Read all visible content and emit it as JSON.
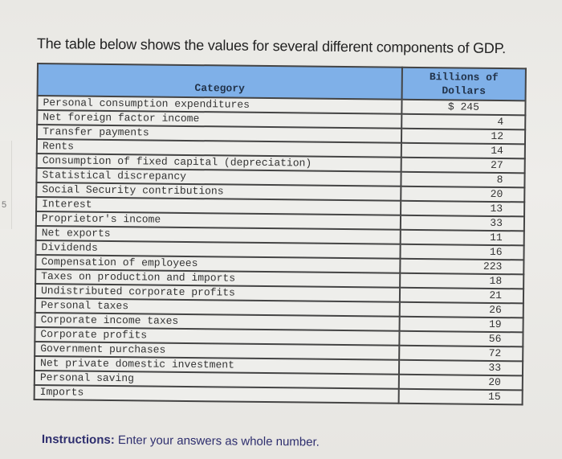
{
  "intro_text": "The table below shows the values for several different components of GDP.",
  "table": {
    "headers": {
      "category": "Category",
      "value": "Billions of Dollars"
    },
    "rows": [
      {
        "category": "Personal consumption expenditures",
        "value": "$ 245"
      },
      {
        "category": "Net foreign factor income",
        "value": "4"
      },
      {
        "category": "Transfer payments",
        "value": "12"
      },
      {
        "category": "Rents",
        "value": "14"
      },
      {
        "category": "Consumption of fixed capital (depreciation)",
        "value": "27"
      },
      {
        "category": "Statistical discrepancy",
        "value": "8"
      },
      {
        "category": "Social Security contributions",
        "value": "20"
      },
      {
        "category": "Interest",
        "value": "13"
      },
      {
        "category": "Proprietor's income",
        "value": "33"
      },
      {
        "category": "Net exports",
        "value": "11"
      },
      {
        "category": "Dividends",
        "value": "16"
      },
      {
        "category": "Compensation of employees",
        "value": "223"
      },
      {
        "category": "Taxes on production and imports",
        "value": "18"
      },
      {
        "category": "Undistributed corporate profits",
        "value": "21"
      },
      {
        "category": "Personal taxes",
        "value": "26"
      },
      {
        "category": "Corporate income taxes",
        "value": "19"
      },
      {
        "category": "Corporate profits",
        "value": "56"
      },
      {
        "category": "Government purchases",
        "value": "72"
      },
      {
        "category": "Net private domestic investment",
        "value": "33"
      },
      {
        "category": "Personal saving",
        "value": "20"
      },
      {
        "category": "Imports",
        "value": "15"
      }
    ]
  },
  "instructions": {
    "label": "Instructions:",
    "text": " Enter your answers as whole number."
  }
}
